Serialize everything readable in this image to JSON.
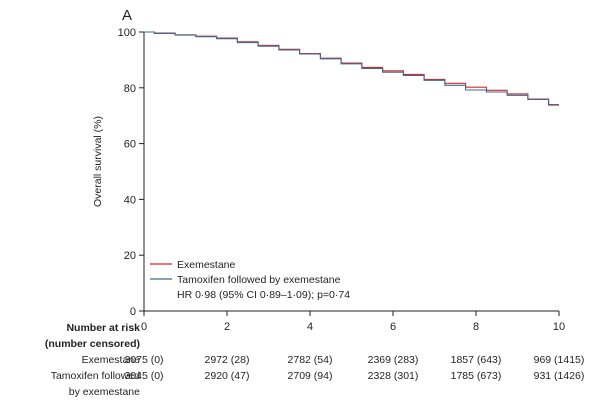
{
  "chart_data": {
    "type": "line",
    "panel_label": "A",
    "ylabel": "Overall survival (%)",
    "xlim": [
      0,
      10
    ],
    "ylim": [
      0,
      100
    ],
    "xticks": [
      0,
      2,
      4,
      6,
      8,
      10
    ],
    "yticks": [
      0,
      20,
      40,
      60,
      80,
      100
    ],
    "grid": false,
    "legend_position": "bottom-left",
    "annotation": "HR 0·98 (95% CI 0·89–1·09); p=0·74",
    "series": [
      {
        "name": "Exemestane",
        "color": "#d6282f",
        "x": [
          0,
          0.5,
          1,
          1.5,
          2,
          2.5,
          3,
          3.5,
          4,
          4.5,
          5,
          5.5,
          6,
          6.5,
          7,
          7.5,
          8,
          8.5,
          9,
          9.5,
          10
        ],
        "y": [
          100,
          99.6,
          99.0,
          98.5,
          97.8,
          96.5,
          95.2,
          93.8,
          92.3,
          90.6,
          88.9,
          87.3,
          86.1,
          84.8,
          83.0,
          81.6,
          80.2,
          79.1,
          77.8,
          76.0,
          73.8
        ]
      },
      {
        "name": "Tamoxifen followed by exemestane",
        "color": "#3d6b8f",
        "x": [
          0,
          0.5,
          1,
          1.5,
          2,
          2.5,
          3,
          3.5,
          4,
          4.5,
          5,
          5.5,
          6,
          6.5,
          7,
          7.5,
          8,
          8.5,
          9,
          9.5,
          10
        ],
        "y": [
          100,
          99.5,
          98.9,
          98.3,
          97.6,
          96.2,
          94.9,
          93.6,
          92.1,
          90.4,
          88.6,
          86.9,
          85.6,
          84.4,
          82.7,
          80.9,
          79.2,
          78.5,
          77.3,
          75.8,
          74.0
        ]
      }
    ],
    "risk_table": {
      "header": [
        "Number at risk",
        "(number censored)"
      ],
      "rows": [
        {
          "label": [
            "Exemestane"
          ],
          "values": [
            "3075 (0)",
            "2972 (28)",
            "2782 (54)",
            "2369 (283)",
            "1857 (643)",
            "969 (1415)"
          ]
        },
        {
          "label": [
            "Tamoxifen followed",
            "by exemestane"
          ],
          "values": [
            "3045 (0)",
            "2920 (47)",
            "2709 (94)",
            "2328 (301)",
            "1785 (673)",
            "931 (1426)"
          ]
        }
      ]
    }
  }
}
